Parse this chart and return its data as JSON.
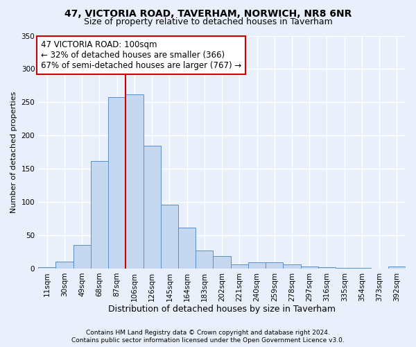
{
  "title1": "47, VICTORIA ROAD, TAVERHAM, NORWICH, NR8 6NR",
  "title2": "Size of property relative to detached houses in Taverham",
  "xlabel": "Distribution of detached houses by size in Taverham",
  "ylabel": "Number of detached properties",
  "categories": [
    "11sqm",
    "30sqm",
    "49sqm",
    "68sqm",
    "87sqm",
    "106sqm",
    "126sqm",
    "145sqm",
    "164sqm",
    "183sqm",
    "202sqm",
    "221sqm",
    "240sqm",
    "259sqm",
    "278sqm",
    "297sqm",
    "316sqm",
    "335sqm",
    "354sqm",
    "373sqm",
    "392sqm"
  ],
  "values": [
    2,
    10,
    35,
    162,
    258,
    262,
    185,
    96,
    62,
    27,
    19,
    6,
    9,
    9,
    6,
    3,
    2,
    1,
    1,
    0,
    3
  ],
  "bar_color": "#c5d8f0",
  "bar_edge_color": "#5b8fc9",
  "vline_x": 4.5,
  "vline_color": "#cc0000",
  "annotation_line1": "47 VICTORIA ROAD: 100sqm",
  "annotation_line2": "← 32% of detached houses are smaller (366)",
  "annotation_line3": "67% of semi-detached houses are larger (767) →",
  "annotation_box_color": "#ffffff",
  "annotation_box_edge_color": "#cc0000",
  "footer1": "Contains HM Land Registry data © Crown copyright and database right 2024.",
  "footer2": "Contains public sector information licensed under the Open Government Licence v3.0.",
  "bg_color": "#eaf0fb",
  "plot_bg_color": "#eaf0fb",
  "ylim": [
    0,
    350
  ],
  "yticks": [
    0,
    50,
    100,
    150,
    200,
    250,
    300,
    350
  ],
  "grid_color": "#ffffff",
  "title1_fontsize": 10,
  "title2_fontsize": 9,
  "ylabel_fontsize": 8,
  "xlabel_fontsize": 9,
  "tick_fontsize": 7.5,
  "annot_fontsize": 8.5
}
